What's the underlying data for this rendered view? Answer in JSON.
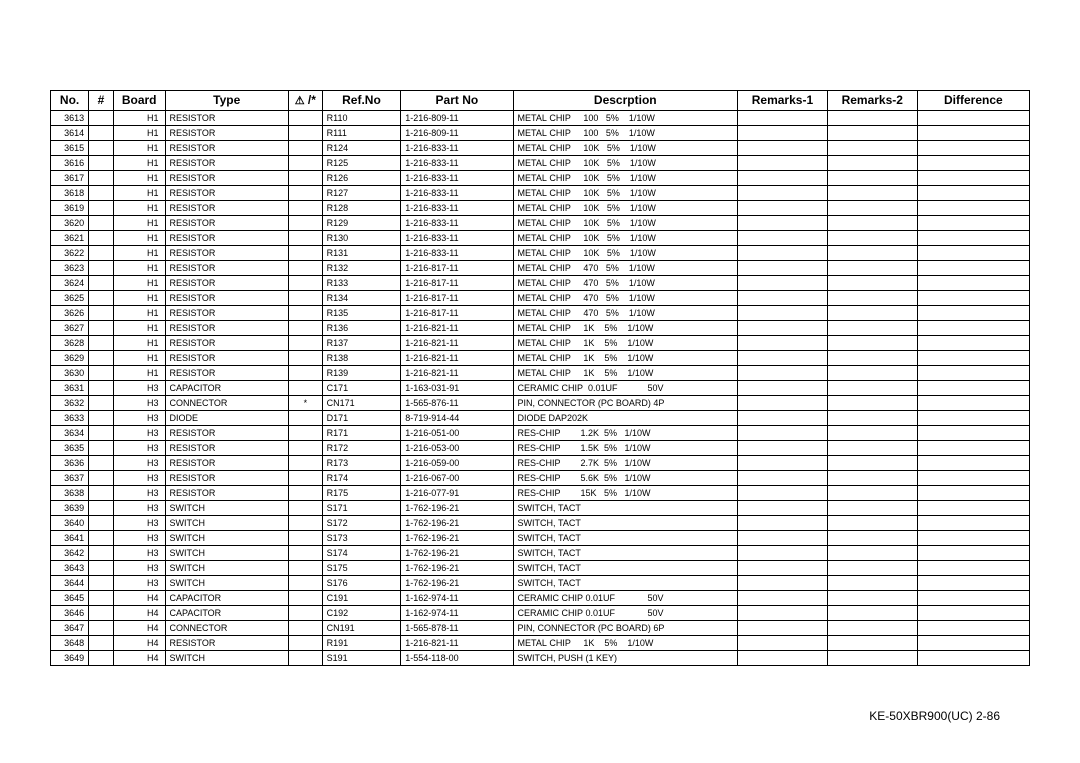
{
  "headers": {
    "no": "No.",
    "hash": "#",
    "board": "Board",
    "type": "Type",
    "warn": "⚠ /*",
    "ref": "Ref.No",
    "part": "Part No",
    "desc": "Descrption",
    "r1": "Remarks-1",
    "r2": "Remarks-2",
    "diff": "Difference"
  },
  "footer": "KE-50XBR900(UC)    2-86",
  "rows": [
    {
      "no": "3613",
      "board": "H1",
      "type": "RESISTOR",
      "warn": "",
      "ref": "R110",
      "part": "1-216-809-11",
      "desc": "METAL CHIP     100   5%    1/10W"
    },
    {
      "no": "3614",
      "board": "H1",
      "type": "RESISTOR",
      "warn": "",
      "ref": "R111",
      "part": "1-216-809-11",
      "desc": "METAL CHIP     100   5%    1/10W"
    },
    {
      "no": "3615",
      "board": "H1",
      "type": "RESISTOR",
      "warn": "",
      "ref": "R124",
      "part": "1-216-833-11",
      "desc": "METAL CHIP     10K   5%    1/10W"
    },
    {
      "no": "3616",
      "board": "H1",
      "type": "RESISTOR",
      "warn": "",
      "ref": "R125",
      "part": "1-216-833-11",
      "desc": "METAL CHIP     10K   5%    1/10W"
    },
    {
      "no": "3617",
      "board": "H1",
      "type": "RESISTOR",
      "warn": "",
      "ref": "R126",
      "part": "1-216-833-11",
      "desc": "METAL CHIP     10K   5%    1/10W"
    },
    {
      "no": "3618",
      "board": "H1",
      "type": "RESISTOR",
      "warn": "",
      "ref": "R127",
      "part": "1-216-833-11",
      "desc": "METAL CHIP     10K   5%    1/10W"
    },
    {
      "no": "3619",
      "board": "H1",
      "type": "RESISTOR",
      "warn": "",
      "ref": "R128",
      "part": "1-216-833-11",
      "desc": "METAL CHIP     10K   5%    1/10W"
    },
    {
      "no": "3620",
      "board": "H1",
      "type": "RESISTOR",
      "warn": "",
      "ref": "R129",
      "part": "1-216-833-11",
      "desc": "METAL CHIP     10K   5%    1/10W"
    },
    {
      "no": "3621",
      "board": "H1",
      "type": "RESISTOR",
      "warn": "",
      "ref": "R130",
      "part": "1-216-833-11",
      "desc": "METAL CHIP     10K   5%    1/10W"
    },
    {
      "no": "3622",
      "board": "H1",
      "type": "RESISTOR",
      "warn": "",
      "ref": "R131",
      "part": "1-216-833-11",
      "desc": "METAL CHIP     10K   5%    1/10W"
    },
    {
      "no": "3623",
      "board": "H1",
      "type": "RESISTOR",
      "warn": "",
      "ref": "R132",
      "part": "1-216-817-11",
      "desc": "METAL CHIP     470   5%    1/10W"
    },
    {
      "no": "3624",
      "board": "H1",
      "type": "RESISTOR",
      "warn": "",
      "ref": "R133",
      "part": "1-216-817-11",
      "desc": "METAL CHIP     470   5%    1/10W"
    },
    {
      "no": "3625",
      "board": "H1",
      "type": "RESISTOR",
      "warn": "",
      "ref": "R134",
      "part": "1-216-817-11",
      "desc": "METAL CHIP     470   5%    1/10W"
    },
    {
      "no": "3626",
      "board": "H1",
      "type": "RESISTOR",
      "warn": "",
      "ref": "R135",
      "part": "1-216-817-11",
      "desc": "METAL CHIP     470   5%    1/10W"
    },
    {
      "no": "3627",
      "board": "H1",
      "type": "RESISTOR",
      "warn": "",
      "ref": "R136",
      "part": "1-216-821-11",
      "desc": "METAL CHIP     1K    5%    1/10W"
    },
    {
      "no": "3628",
      "board": "H1",
      "type": "RESISTOR",
      "warn": "",
      "ref": "R137",
      "part": "1-216-821-11",
      "desc": "METAL CHIP     1K    5%    1/10W"
    },
    {
      "no": "3629",
      "board": "H1",
      "type": "RESISTOR",
      "warn": "",
      "ref": "R138",
      "part": "1-216-821-11",
      "desc": "METAL CHIP     1K    5%    1/10W"
    },
    {
      "no": "3630",
      "board": "H1",
      "type": "RESISTOR",
      "warn": "",
      "ref": "R139",
      "part": "1-216-821-11",
      "desc": "METAL CHIP     1K    5%    1/10W"
    },
    {
      "no": "3631",
      "board": "H3",
      "type": "CAPACITOR",
      "warn": "",
      "ref": "C171",
      "part": "1-163-031-91",
      "desc": "CERAMIC CHIP  0.01UF            50V"
    },
    {
      "no": "3632",
      "board": "H3",
      "type": "CONNECTOR",
      "warn": "*",
      "ref": "CN171",
      "part": "1-565-876-11",
      "desc": "PIN, CONNECTOR (PC BOARD) 4P"
    },
    {
      "no": "3633",
      "board": "H3",
      "type": "DIODE",
      "warn": "",
      "ref": "D171",
      "part": "8-719-914-44",
      "desc": "DIODE DAP202K"
    },
    {
      "no": "3634",
      "board": "H3",
      "type": "RESISTOR",
      "warn": "",
      "ref": "R171",
      "part": "1-216-051-00",
      "desc": "RES-CHIP        1.2K  5%   1/10W"
    },
    {
      "no": "3635",
      "board": "H3",
      "type": "RESISTOR",
      "warn": "",
      "ref": "R172",
      "part": "1-216-053-00",
      "desc": "RES-CHIP        1.5K  5%   1/10W"
    },
    {
      "no": "3636",
      "board": "H3",
      "type": "RESISTOR",
      "warn": "",
      "ref": "R173",
      "part": "1-216-059-00",
      "desc": "RES-CHIP        2.7K  5%   1/10W"
    },
    {
      "no": "3637",
      "board": "H3",
      "type": "RESISTOR",
      "warn": "",
      "ref": "R174",
      "part": "1-216-067-00",
      "desc": "RES-CHIP        5.6K  5%   1/10W"
    },
    {
      "no": "3638",
      "board": "H3",
      "type": "RESISTOR",
      "warn": "",
      "ref": "R175",
      "part": "1-216-077-91",
      "desc": "RES-CHIP        15K   5%   1/10W"
    },
    {
      "no": "3639",
      "board": "H3",
      "type": "SWITCH",
      "warn": "",
      "ref": "S171",
      "part": "1-762-196-21",
      "desc": "SWITCH, TACT"
    },
    {
      "no": "3640",
      "board": "H3",
      "type": "SWITCH",
      "warn": "",
      "ref": "S172",
      "part": "1-762-196-21",
      "desc": "SWITCH, TACT"
    },
    {
      "no": "3641",
      "board": "H3",
      "type": "SWITCH",
      "warn": "",
      "ref": "S173",
      "part": "1-762-196-21",
      "desc": "SWITCH, TACT"
    },
    {
      "no": "3642",
      "board": "H3",
      "type": "SWITCH",
      "warn": "",
      "ref": "S174",
      "part": "1-762-196-21",
      "desc": "SWITCH, TACT"
    },
    {
      "no": "3643",
      "board": "H3",
      "type": "SWITCH",
      "warn": "",
      "ref": "S175",
      "part": "1-762-196-21",
      "desc": "SWITCH, TACT"
    },
    {
      "no": "3644",
      "board": "H3",
      "type": "SWITCH",
      "warn": "",
      "ref": "S176",
      "part": "1-762-196-21",
      "desc": "SWITCH, TACT"
    },
    {
      "no": "3645",
      "board": "H4",
      "type": "CAPACITOR",
      "warn": "",
      "ref": "C191",
      "part": "1-162-974-11",
      "desc": "CERAMIC CHIP 0.01UF             50V"
    },
    {
      "no": "3646",
      "board": "H4",
      "type": "CAPACITOR",
      "warn": "",
      "ref": "C192",
      "part": "1-162-974-11",
      "desc": "CERAMIC CHIP 0.01UF             50V"
    },
    {
      "no": "3647",
      "board": "H4",
      "type": "CONNECTOR",
      "warn": "",
      "ref": "CN191",
      "part": "1-565-878-11",
      "desc": "PIN, CONNECTOR (PC BOARD) 6P"
    },
    {
      "no": "3648",
      "board": "H4",
      "type": "RESISTOR",
      "warn": "",
      "ref": "R191",
      "part": "1-216-821-11",
      "desc": "METAL CHIP     1K    5%    1/10W"
    },
    {
      "no": "3649",
      "board": "H4",
      "type": "SWITCH",
      "warn": "",
      "ref": "S191",
      "part": "1-554-118-00",
      "desc": "SWITCH, PUSH (1 KEY)"
    }
  ]
}
